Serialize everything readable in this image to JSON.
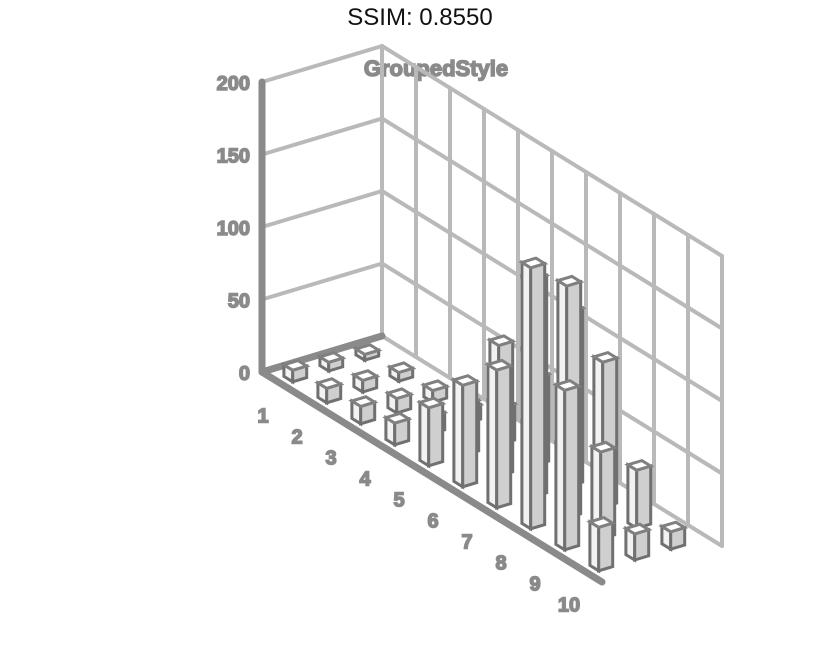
{
  "header": {
    "title": "SSIM: 0.8550"
  },
  "chart_data": {
    "type": "bar",
    "title": "GroupedStyle",
    "style": "3d-grouped-bars",
    "color": "#808080",
    "categories": [
      "1",
      "2",
      "3",
      "4",
      "5",
      "6",
      "7",
      "8",
      "9",
      "10"
    ],
    "series": [
      {
        "values": [
          8,
          10,
          12,
          15,
          40,
          70,
          95,
          180,
          110,
          30
        ]
      },
      {
        "values": [
          6,
          8,
          10,
          12,
          35,
          90,
          150,
          160,
          60,
          18
        ]
      },
      {
        "values": [
          4,
          6,
          8,
          10,
          25,
          60,
          120,
          100,
          40,
          12
        ]
      }
    ],
    "y_ticks": [
      "0",
      "50",
      "100",
      "150",
      "200"
    ],
    "ylim": [
      0,
      200
    ],
    "grid": true
  }
}
